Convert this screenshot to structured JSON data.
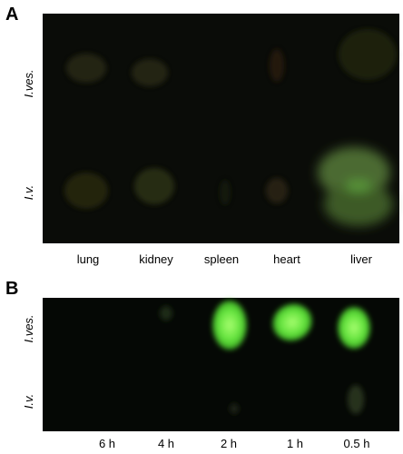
{
  "panels": [
    {
      "label": "A",
      "row_labels": [
        "I.ves.",
        "I.v."
      ],
      "column_labels": [
        "lung",
        "kidney",
        "spleen",
        "heart",
        "liver"
      ]
    },
    {
      "label": "B",
      "row_labels": [
        "I.ves.",
        "I.v."
      ],
      "column_labels": [
        "6 h",
        "4 h",
        "2 h",
        "1 h",
        "0.5 h"
      ]
    }
  ]
}
